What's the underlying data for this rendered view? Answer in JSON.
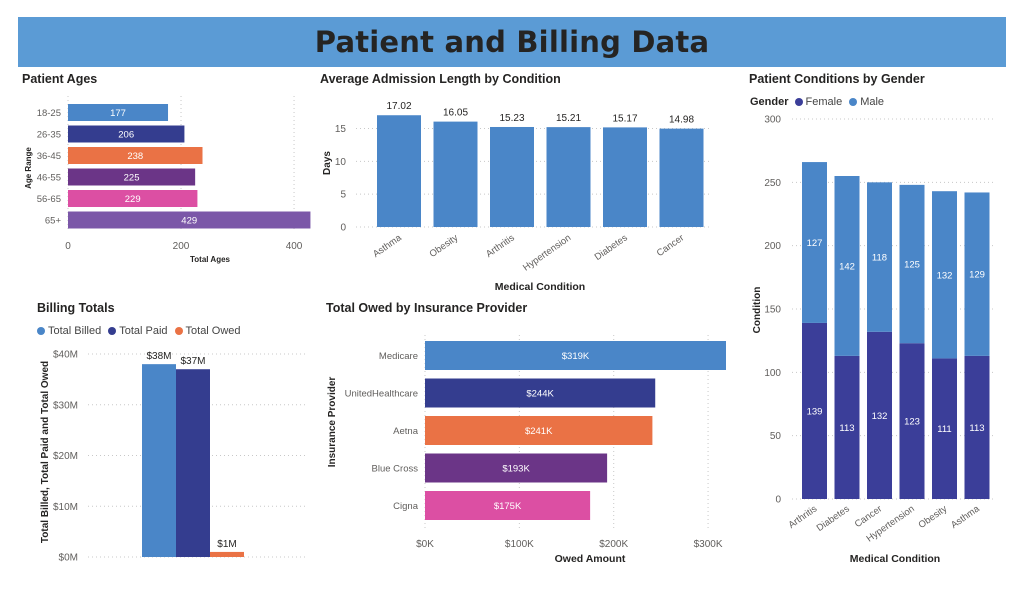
{
  "header": {
    "title": "Patient and Billing Data"
  },
  "colors": {
    "blue": "#4a86c8",
    "navy": "#343d8f",
    "orange": "#ea7245",
    "purple": "#6b3587",
    "pink": "#dc4fa3",
    "violet": "#7b57a8",
    "female": "#3b3e99",
    "male": "#4a86c8"
  },
  "panels": {
    "ages": {
      "title": "Patient Ages"
    },
    "admission": {
      "title": "Average Admission Length by Condition"
    },
    "gender": {
      "title": "Patient Conditions by Gender"
    },
    "billing": {
      "title": "Billing Totals"
    },
    "insurance": {
      "title": "Total Owed by Insurance Provider"
    }
  },
  "chart_data": [
    {
      "id": "ages",
      "type": "bar",
      "orientation": "horizontal",
      "title": "Patient Ages",
      "xlabel": "Total Ages",
      "ylabel": "Age Range",
      "categories": [
        "18-25",
        "26-35",
        "36-45",
        "46-55",
        "56-65",
        "65+"
      ],
      "values": [
        177,
        206,
        238,
        225,
        229,
        429
      ],
      "data_labels": [
        "177",
        "206",
        "238",
        "225",
        "229",
        "429"
      ],
      "bar_colors": [
        "#4a86c8",
        "#343d8f",
        "#ea7245",
        "#6b3587",
        "#dc4fa3",
        "#7b57a8"
      ],
      "xlim": [
        0,
        430
      ],
      "xticks": [
        0,
        200,
        400
      ],
      "xtick_labels": [
        "0",
        "200",
        "400"
      ],
      "grid": true
    },
    {
      "id": "admission",
      "type": "bar",
      "title": "Average Admission Length by Condition",
      "xlabel": "Medical Condition",
      "ylabel": "Days",
      "categories": [
        "Asthma",
        "Obesity",
        "Arthritis",
        "Hypertension",
        "Diabetes",
        "Cancer"
      ],
      "values": [
        17.02,
        16.05,
        15.23,
        15.21,
        15.17,
        14.98
      ],
      "data_labels": [
        "17.02",
        "16.05",
        "15.23",
        "15.21",
        "15.17",
        "14.98"
      ],
      "ylim": [
        0,
        18.5
      ],
      "yticks": [
        0,
        5,
        10,
        15
      ],
      "ytick_labels": [
        "0",
        "5",
        "10",
        "15"
      ],
      "grid": true
    },
    {
      "id": "gender",
      "type": "bar",
      "stacked": true,
      "title": "Patient Conditions by Gender",
      "xlabel": "Medical Condition",
      "ylabel": "Condition",
      "legend_title": "Gender",
      "legend_position": "top-left",
      "categories": [
        "Arthritis",
        "Diabetes",
        "Cancer",
        "Hypertension",
        "Obesity",
        "Asthma"
      ],
      "series": [
        {
          "name": "Female",
          "values": [
            139,
            113,
            132,
            123,
            111,
            113
          ],
          "labels": [
            "139",
            "113",
            "132",
            "123",
            "111",
            "113"
          ]
        },
        {
          "name": "Male",
          "values": [
            127,
            142,
            118,
            125,
            132,
            129
          ],
          "labels": [
            "127",
            "142",
            "118",
            "125",
            "132",
            "129"
          ]
        }
      ],
      "ylim": [
        0,
        300
      ],
      "yticks": [
        0,
        50,
        100,
        150,
        200,
        250,
        300
      ],
      "ytick_labels": [
        "0",
        "50",
        "100",
        "150",
        "200",
        "250",
        "300"
      ],
      "grid": true
    },
    {
      "id": "billing",
      "type": "bar",
      "title": "Billing Totals",
      "ylabel": "Total Billed, Total Paid and Total Owed",
      "legend_position": "top-left",
      "series": [
        {
          "name": "Total Billed",
          "values": [
            38
          ],
          "label": "$38M",
          "color": "#4a86c8"
        },
        {
          "name": "Total Paid",
          "values": [
            37
          ],
          "label": "$37M",
          "color": "#343d8f"
        },
        {
          "name": "Total Owed",
          "values": [
            1
          ],
          "label": "$1M",
          "color": "#ea7245"
        }
      ],
      "units": "$M",
      "ylim": [
        0,
        40
      ],
      "yticks": [
        0,
        10,
        20,
        30,
        40
      ],
      "ytick_labels": [
        "$0M",
        "$10M",
        "$20M",
        "$30M",
        "$40M"
      ],
      "grid": true
    },
    {
      "id": "insurance",
      "type": "bar",
      "orientation": "horizontal",
      "title": "Total Owed by Insurance Provider",
      "xlabel": "Owed Amount",
      "ylabel": "Insurance Provider",
      "categories": [
        "Medicare",
        "UnitedHealthcare",
        "Aetna",
        "Blue Cross",
        "Cigna"
      ],
      "values": [
        319,
        244,
        241,
        193,
        175
      ],
      "data_labels": [
        "$319K",
        "$244K",
        "$241K",
        "$193K",
        "$175K"
      ],
      "bar_colors": [
        "#4a86c8",
        "#343d8f",
        "#ea7245",
        "#6b3587",
        "#dc4fa3"
      ],
      "units": "$K",
      "xlim": [
        0,
        319
      ],
      "xticks": [
        0,
        100,
        200,
        300
      ],
      "xtick_labels": [
        "$0K",
        "$100K",
        "$200K",
        "$300K"
      ],
      "grid": true
    }
  ]
}
